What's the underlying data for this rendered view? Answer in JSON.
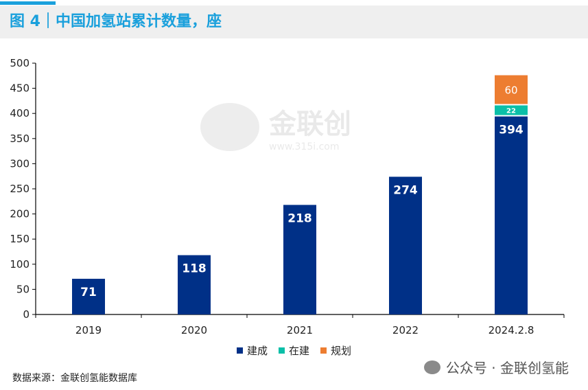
{
  "header": {
    "title": "图 4｜中国加氢站累计数量，座"
  },
  "chart_data": {
    "type": "bar",
    "stacked": true,
    "title": "中国加氢站累计数量，座",
    "categories": [
      "2019",
      "2020",
      "2021",
      "2022",
      "2024.2.8"
    ],
    "series": [
      {
        "name": "建成",
        "color": "#003087",
        "values": [
          71,
          118,
          218,
          274,
          394
        ]
      },
      {
        "name": "在建",
        "color": "#0abfa8",
        "values": [
          0,
          0,
          0,
          0,
          22
        ]
      },
      {
        "name": "规划",
        "color": "#ed7d31",
        "values": [
          0,
          0,
          0,
          0,
          60
        ]
      }
    ],
    "ylim": [
      0,
      500
    ],
    "yticks": [
      0,
      50,
      100,
      150,
      200,
      250,
      300,
      350,
      400,
      450,
      500
    ],
    "xlabel": "",
    "ylabel": "",
    "legend": "bottom"
  },
  "source": "数据来源：金联创氢能数据库",
  "watermark": {
    "name": "金联创",
    "url": "www.315i.com"
  },
  "footer": {
    "brand": "公众号 · 金联创氢能"
  }
}
